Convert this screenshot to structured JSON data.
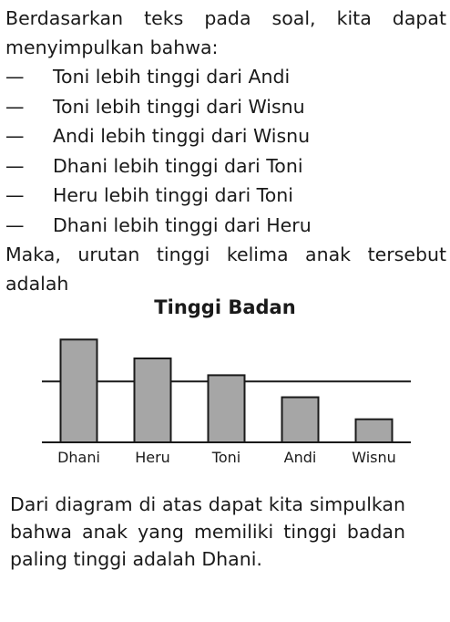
{
  "intro": {
    "line1": "Berdasarkan teks pada soal, kita dapat",
    "line2": "menyimpulkan bahwa:"
  },
  "statements": [
    {
      "dash": "—",
      "text": "Toni lebih tinggi dari Andi"
    },
    {
      "dash": "—",
      "text": "Toni lebih tinggi dari Wisnu"
    },
    {
      "dash": "—",
      "text": "Andi lebih tinggi dari Wisnu"
    },
    {
      "dash": "—",
      "text": "Dhani lebih tinggi dari Toni"
    },
    {
      "dash": "—",
      "text": "Heru lebih tinggi dari Toni"
    },
    {
      "dash": "—",
      "text": "Dhani lebih tinggi dari Heru"
    }
  ],
  "question": {
    "line1": "Maka, urutan tinggi kelima anak tersebut",
    "line2": "adalah"
  },
  "chart_data": {
    "type": "bar",
    "title": "Tinggi Badan",
    "categories": [
      "Dhani",
      "Heru",
      "Toni",
      "Andi",
      "Wisnu"
    ],
    "values": [
      98,
      80,
      64,
      43,
      22
    ],
    "ylim": [
      0,
      100
    ],
    "gridlines": [
      0,
      58,
      115
    ],
    "grid": true,
    "bar_color": "#a6a6a6",
    "xlabel": "",
    "ylabel": ""
  },
  "conclusion": "Dari diagram di atas dapat kita simpulkan bahwa anak yang memiliki tinggi badan paling tinggi adalah Dhani."
}
